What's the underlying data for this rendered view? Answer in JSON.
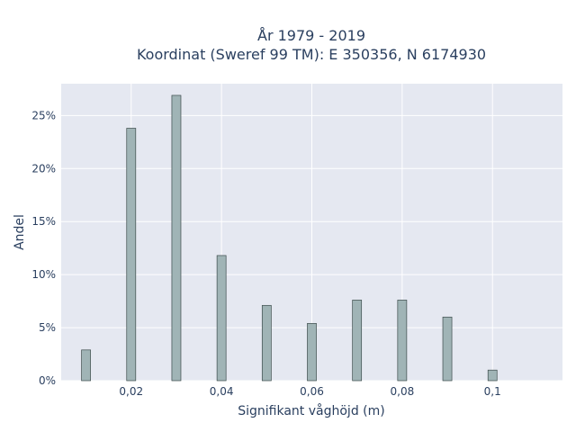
{
  "chart_data": {
    "type": "bar",
    "title": "År 1979 - 2019",
    "subtitle": "Koordinat (Sweref 99 TM): E 350356, N 6174930",
    "xlabel": "Signifikant våghöjd (m)",
    "ylabel": "Andel",
    "x": [
      0.01,
      0.02,
      0.03,
      0.04,
      0.05,
      0.06,
      0.07,
      0.08,
      0.09,
      0.1
    ],
    "values": [
      0.029,
      0.238,
      0.269,
      0.118,
      0.071,
      0.054,
      0.076,
      0.076,
      0.06,
      0.01
    ],
    "xlim": [
      0.0045,
      0.1155
    ],
    "ylim": [
      0,
      0.28
    ],
    "xticks": [
      0.02,
      0.04,
      0.06,
      0.08,
      0.1
    ],
    "xtick_labels": [
      "0,02",
      "0,04",
      "0,06",
      "0,08",
      "0,1"
    ],
    "yticks": [
      0,
      0.05,
      0.1,
      0.15,
      0.2,
      0.25
    ],
    "ytick_labels": [
      "0%",
      "5%",
      "10%",
      "15%",
      "20%",
      "25%"
    ],
    "grid": true,
    "legend": false,
    "colors": {
      "plot_background": "#e5e8f1",
      "bar_fill": "#a0b4b6",
      "bar_stroke": "#3c4b4b",
      "grid": "#ffffff",
      "text": "#2a3f5f"
    }
  }
}
